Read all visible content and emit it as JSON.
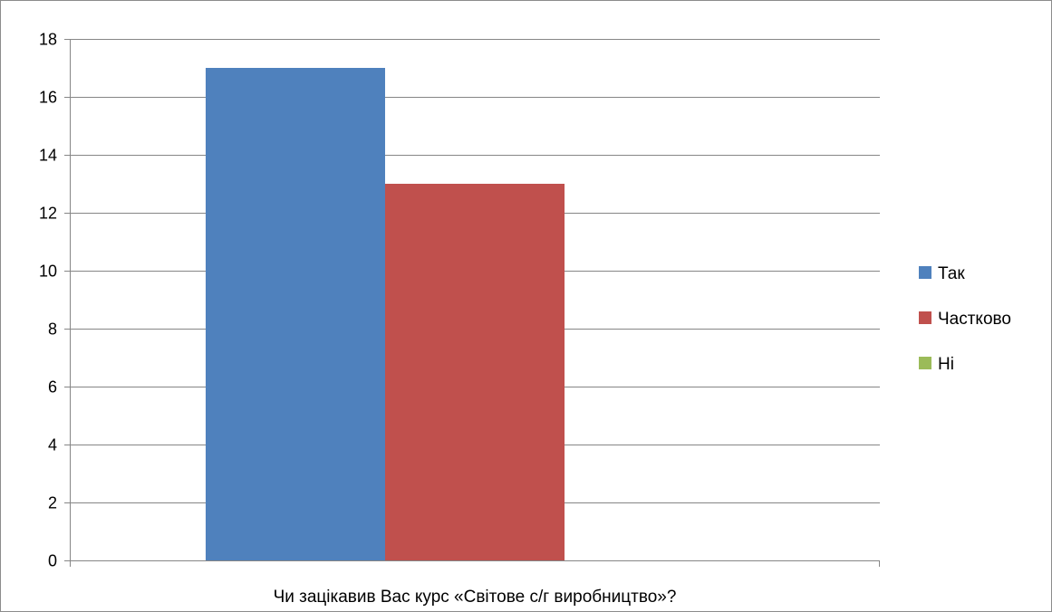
{
  "chart_data": {
    "type": "bar",
    "categories": [
      "Чи зацікавив Вас курс «Світове с/г виробництво»?"
    ],
    "series": [
      {
        "name": "Так",
        "values": [
          17
        ],
        "color": "#4f81bd"
      },
      {
        "name": "Частково",
        "values": [
          13
        ],
        "color": "#c0504d"
      },
      {
        "name": "Ні",
        "values": [
          0
        ],
        "color": "#9bbb59"
      }
    ],
    "ylim": [
      0,
      18
    ],
    "yticks": [
      0,
      2,
      4,
      6,
      8,
      10,
      12,
      14,
      16,
      18
    ],
    "grid": true,
    "legend": "right"
  }
}
